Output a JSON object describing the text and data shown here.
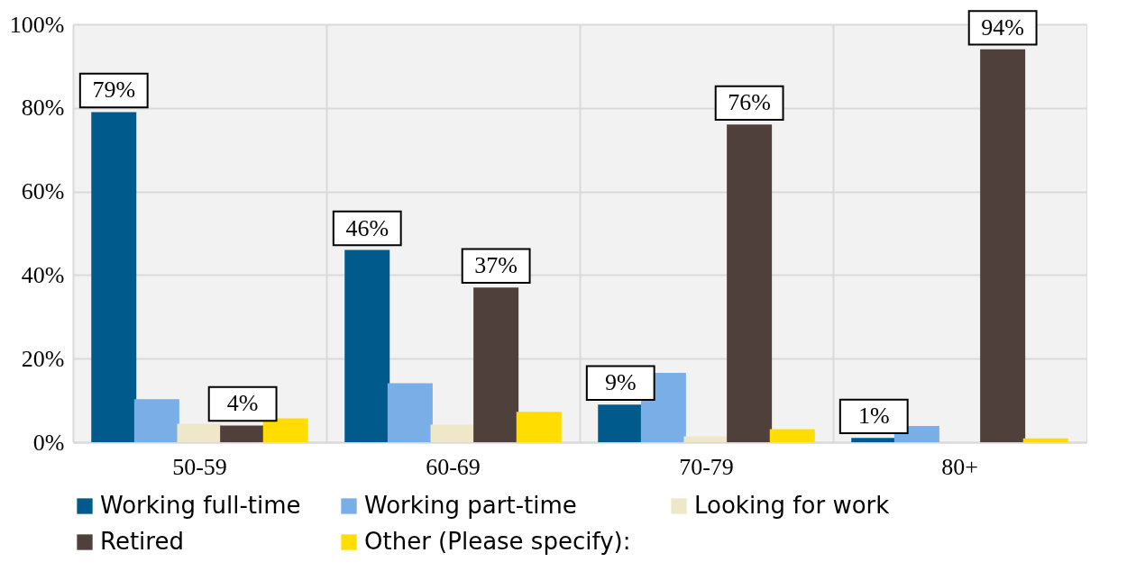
{
  "chart_data": {
    "type": "bar",
    "categories": [
      "50-59",
      "60-69",
      "70-79",
      "80+"
    ],
    "series": [
      {
        "name": "Working full-time",
        "color": "#005a8c",
        "values": [
          79,
          46,
          9,
          1
        ],
        "value_labels": [
          "79%",
          "46%",
          "9%",
          "1%"
        ]
      },
      {
        "name": "Working part-time",
        "color": "#7aaee6",
        "values": [
          10.3,
          14.1,
          16.6,
          3.9
        ],
        "value_labels": [
          null,
          null,
          null,
          null
        ]
      },
      {
        "name": "Looking for work",
        "color": "#eee8c8",
        "values": [
          4.4,
          4.2,
          1.4,
          0
        ],
        "value_labels": [
          null,
          null,
          null,
          null
        ]
      },
      {
        "name": "Retired",
        "color": "#4f403c",
        "values": [
          4,
          37,
          76,
          94
        ],
        "value_labels": [
          "4%",
          "37%",
          "76%",
          "94%"
        ]
      },
      {
        "name": "Other (Please specify):",
        "color": "#ffdd00",
        "values": [
          5.7,
          7.3,
          3.1,
          0.9
        ],
        "value_labels": [
          null,
          null,
          null,
          null
        ]
      }
    ],
    "ylim": [
      0,
      100
    ],
    "yticks": [
      {
        "value": 0,
        "label": "0%"
      },
      {
        "value": 20,
        "label": "20%"
      },
      {
        "value": 40,
        "label": "40%"
      },
      {
        "value": 60,
        "label": "60%"
      },
      {
        "value": 80,
        "label": "80%"
      },
      {
        "value": 100,
        "label": "100%"
      }
    ],
    "grid": true,
    "legend": "bottom"
  }
}
